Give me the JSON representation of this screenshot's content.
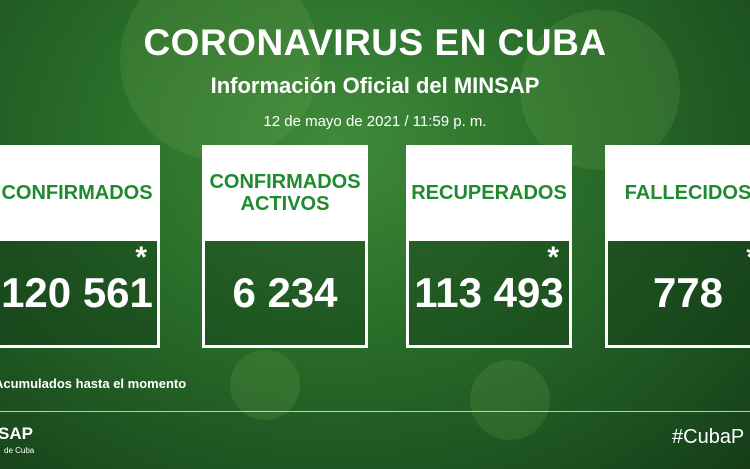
{
  "header": {
    "title": "CORONAVIRUS EN CUBA",
    "subtitle": "Información Oficial del MINSAP",
    "date": "12 de mayo de 2021 / 11:59 p. m."
  },
  "cards": [
    {
      "label": "CONFIRMADOS",
      "value": "120 561",
      "mark": "*"
    },
    {
      "label": "CONFIRMADOS ACTIVOS",
      "value": "6 234"
    },
    {
      "label": "RECUPERADOS",
      "value": "113 493",
      "mark": "*"
    },
    {
      "label": "FALLECIDOS",
      "value": "778",
      "mark": "*"
    }
  ],
  "footnote": "Acumulados hasta el momento",
  "footer": {
    "logo": "SAP",
    "logo_sub": "de Cuba",
    "hashtag": "#CubaP"
  }
}
